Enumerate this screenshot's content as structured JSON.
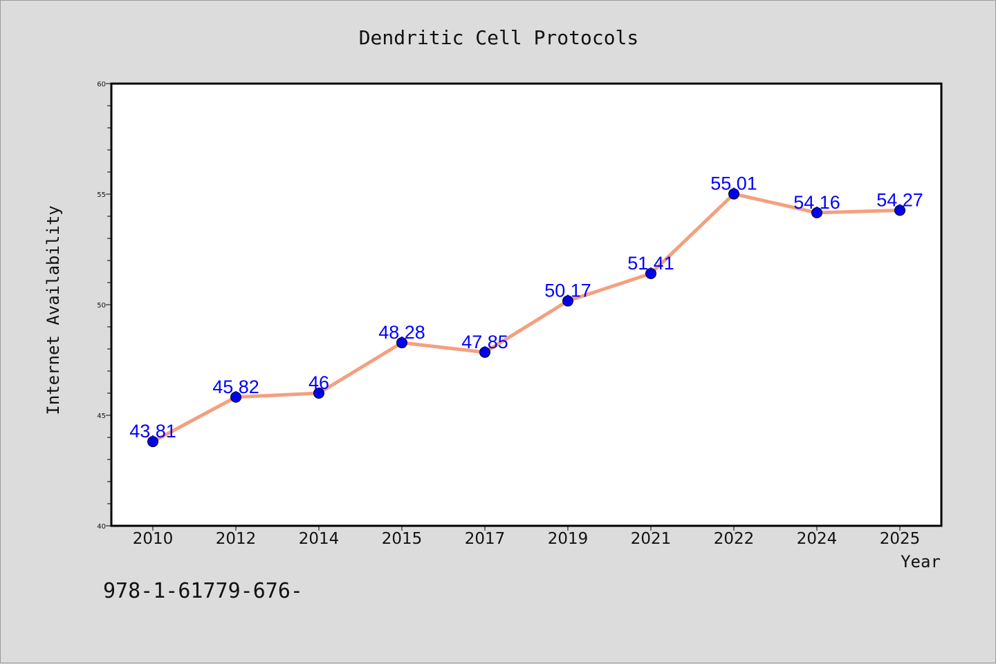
{
  "chart_data": {
    "type": "line",
    "title": "Dendritic Cell Protocols",
    "xlabel": "Year",
    "ylabel": "Internet Availability",
    "categories": [
      "2010",
      "2012",
      "2014",
      "2015",
      "2017",
      "2019",
      "2021",
      "2022",
      "2024",
      "2025"
    ],
    "series": [
      {
        "values": [
          43.81,
          45.82,
          46,
          48.28,
          47.85,
          50.17,
          51.41,
          55.01,
          54.16,
          54.27
        ],
        "data_labels": [
          "43.81",
          "45.82",
          "46",
          "48.28",
          "47.85",
          "50.17",
          "51.41",
          "55.01",
          "54.16",
          "54.27"
        ],
        "line_color": "#f4a07e",
        "marker_color": "#0000ee",
        "label_color": "#0000ff"
      }
    ],
    "ylim": [
      40,
      60
    ],
    "y_ticks": [
      "40",
      "45",
      "50",
      "55",
      "60"
    ],
    "grid": false,
    "legend": "none"
  },
  "footnote": "978-1-61779-676-"
}
